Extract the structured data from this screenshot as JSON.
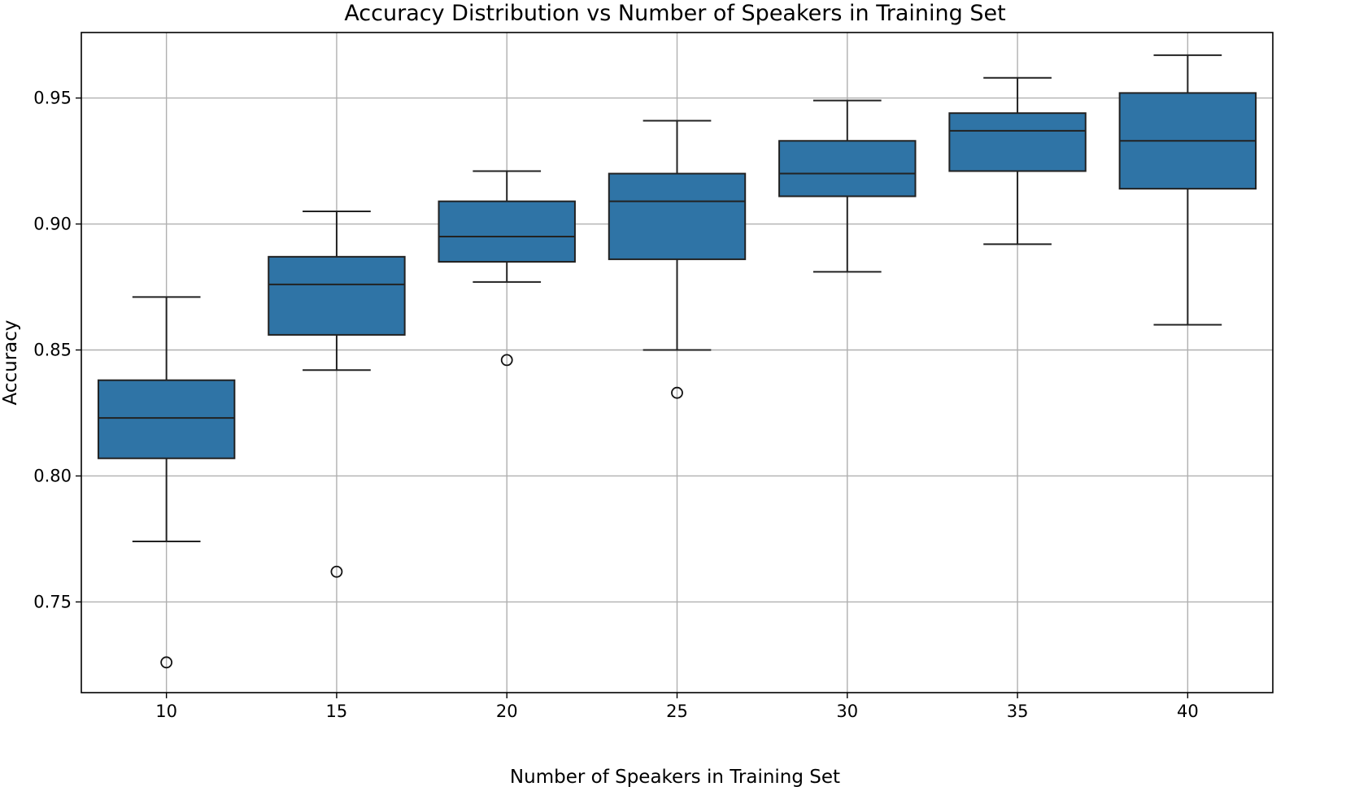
{
  "chart_data": {
    "type": "box",
    "title": "Accuracy Distribution vs Number of Speakers in Training Set",
    "xlabel": "Number of Speakers in Training Set",
    "ylabel": "Accuracy",
    "ylim": [
      0.714,
      0.976
    ],
    "yticks": [
      0.75,
      0.8,
      0.85,
      0.9,
      0.95
    ],
    "ytick_labels": [
      "0.75",
      "0.80",
      "0.85",
      "0.90",
      "0.95"
    ],
    "grid": true,
    "color": "#2f74a6",
    "categories": [
      "10",
      "15",
      "20",
      "25",
      "30",
      "35",
      "40"
    ],
    "boxes": [
      {
        "category": "10",
        "whislo": 0.774,
        "q1": 0.807,
        "median": 0.823,
        "q3": 0.838,
        "whishi": 0.871,
        "fliers": [
          0.726
        ]
      },
      {
        "category": "15",
        "whislo": 0.842,
        "q1": 0.856,
        "median": 0.876,
        "q3": 0.887,
        "whishi": 0.905,
        "fliers": [
          0.762
        ]
      },
      {
        "category": "20",
        "whislo": 0.877,
        "q1": 0.885,
        "median": 0.895,
        "q3": 0.909,
        "whishi": 0.921,
        "fliers": [
          0.846
        ]
      },
      {
        "category": "25",
        "whislo": 0.85,
        "q1": 0.886,
        "median": 0.909,
        "q3": 0.92,
        "whishi": 0.941,
        "fliers": [
          0.833
        ]
      },
      {
        "category": "30",
        "whislo": 0.881,
        "q1": 0.911,
        "median": 0.92,
        "q3": 0.933,
        "whishi": 0.949,
        "fliers": []
      },
      {
        "category": "35",
        "whislo": 0.892,
        "q1": 0.921,
        "median": 0.937,
        "q3": 0.944,
        "whishi": 0.958,
        "fliers": []
      },
      {
        "category": "40",
        "whislo": 0.86,
        "q1": 0.914,
        "median": 0.933,
        "q3": 0.952,
        "whishi": 0.967,
        "fliers": []
      }
    ]
  }
}
